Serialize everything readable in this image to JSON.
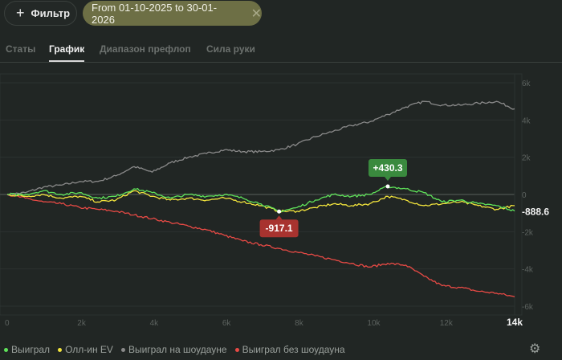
{
  "toolbar": {
    "filter_label": "Фильтр",
    "date_range": "From 01-10-2025 to 30-01-2026"
  },
  "tabs": [
    {
      "label": "Статы",
      "active": false
    },
    {
      "label": "График",
      "active": true
    },
    {
      "label": "Диапазон префлоп",
      "active": false
    },
    {
      "label": "Сила руки",
      "active": false
    }
  ],
  "chart_data": {
    "type": "line",
    "x_ticks": [
      "0",
      "2k",
      "4k",
      "6k",
      "8k",
      "10k",
      "12k",
      "14k"
    ],
    "y_ticks": [
      "6k",
      "4k",
      "2k",
      "0",
      "-2k",
      "-4k",
      "-6k"
    ],
    "xlim": [
      0,
      14000
    ],
    "ylim": [
      -6000,
      6000
    ],
    "x": [
      0,
      500,
      1000,
      1500,
      2000,
      2500,
      3000,
      3500,
      4000,
      4500,
      5000,
      5500,
      6000,
      6500,
      7000,
      7500,
      8000,
      8500,
      9000,
      9500,
      10000,
      10500,
      11000,
      11500,
      12000,
      12500,
      13000,
      13500,
      14000
    ],
    "series": [
      {
        "name": "Выиграл",
        "color": "#5fe35a",
        "values": [
          0,
          0,
          200,
          0,
          100,
          -200,
          -100,
          300,
          100,
          -200,
          0,
          -100,
          0,
          -200,
          -500,
          -917.1,
          -700,
          -300,
          0,
          -100,
          0,
          430.3,
          300,
          100,
          -400,
          -300,
          -500,
          -600,
          -888.6
        ]
      },
      {
        "name": "Олл-ин EV",
        "color": "#f2e43c",
        "values": [
          0,
          -100,
          0,
          -200,
          -100,
          -400,
          -300,
          200,
          -100,
          -300,
          -200,
          -300,
          -200,
          -400,
          -600,
          -900,
          -900,
          -700,
          -500,
          -600,
          -500,
          -100,
          -300,
          -600,
          -500,
          -400,
          -600,
          -800,
          -600
        ]
      },
      {
        "name": "Выиграл на шоудауне",
        "color": "#8a8a8a",
        "values": [
          0,
          100,
          400,
          500,
          700,
          700,
          1000,
          1500,
          1200,
          1700,
          2000,
          2200,
          2400,
          2300,
          2300,
          2400,
          2700,
          3100,
          3400,
          3700,
          3900,
          4300,
          4700,
          5000,
          4800,
          4800,
          4900,
          5000,
          4600
        ]
      },
      {
        "name": "Выиграл без шоудауна",
        "color": "#e84a45",
        "values": [
          0,
          -200,
          -400,
          -500,
          -700,
          -800,
          -900,
          -1100,
          -1300,
          -1500,
          -1700,
          -1900,
          -2200,
          -2500,
          -2700,
          -2900,
          -3100,
          -3300,
          -3500,
          -3700,
          -3900,
          -3700,
          -3800,
          -4400,
          -4900,
          -5000,
          -5200,
          -5300,
          -5500
        ]
      }
    ],
    "annotations": [
      {
        "label": "+430.3",
        "x": 10500,
        "y": 430.3,
        "color": "#3a8a3e"
      },
      {
        "label": "-917.1",
        "x": 7500,
        "y": -917.1,
        "color": "#a8332f"
      }
    ],
    "end_label": "-888.6",
    "grid": true
  },
  "settings_icon": "gear-icon"
}
